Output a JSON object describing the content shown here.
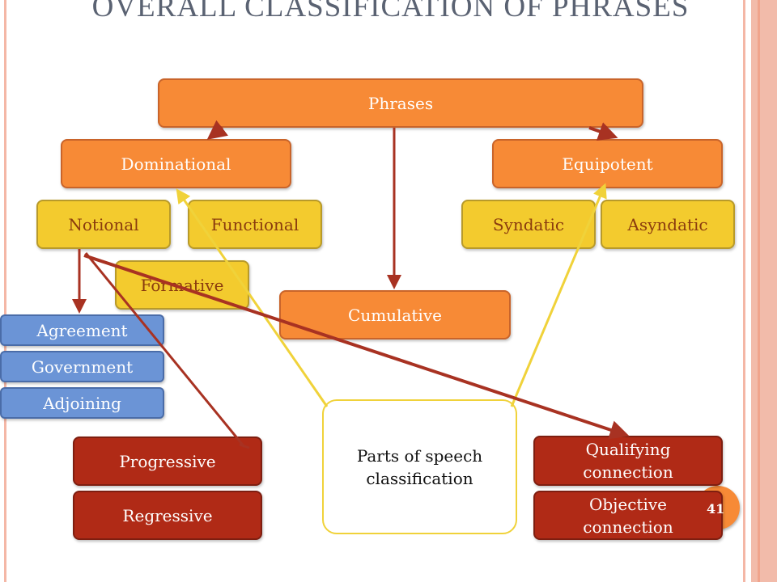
{
  "title": "OVERALL CLASSIFICATION OF PHRASES",
  "nodes": {
    "phrases": "Phrases",
    "dominational": "Dominational",
    "equipotent": "Equipotent",
    "notional": "Notional",
    "functional": "Functional",
    "formative": "Formative",
    "syndatic": "Syndatic",
    "asyndatic": "Asyndatic",
    "cumulative": "Cumulative",
    "agreement": "Agreement",
    "government": "Government",
    "adjoining": "Adjoining",
    "parts_of_speech": "Parts of speech classification",
    "progressive": "Progressive",
    "regressive": "Regressive",
    "qualifying": "Qualifying connection",
    "objective": "Objective connection"
  },
  "page_number": "41",
  "colors": {
    "orange": "#F78A36",
    "yellow": "#F3CB2E",
    "blue": "#6B94D6",
    "red": "#B02A16",
    "arrow_red": "#A83222",
    "arrow_yellow": "#F0D23A"
  }
}
